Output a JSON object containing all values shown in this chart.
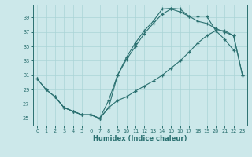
{
  "xlabel": "Humidex (Indice chaleur)",
  "bg_color": "#cce8ea",
  "grid_color": "#aad4d6",
  "line_color": "#2a7070",
  "xlim": [
    -0.5,
    23.5
  ],
  "ylim": [
    24.0,
    40.8
  ],
  "xticks": [
    0,
    1,
    2,
    3,
    4,
    5,
    6,
    7,
    8,
    9,
    10,
    11,
    12,
    13,
    14,
    15,
    16,
    17,
    18,
    19,
    20,
    21,
    22,
    23
  ],
  "yticks": [
    25,
    27,
    29,
    31,
    33,
    35,
    37,
    39
  ],
  "line1_x": [
    0,
    1,
    2,
    3,
    4,
    5,
    6,
    7,
    8,
    9,
    10,
    11,
    12,
    13,
    14,
    15,
    16,
    17,
    18,
    19,
    20,
    21,
    22
  ],
  "line1_y": [
    30.5,
    29.0,
    28.0,
    26.5,
    26.0,
    25.5,
    25.5,
    25.0,
    26.5,
    31.0,
    33.5,
    35.5,
    37.2,
    38.5,
    40.2,
    40.3,
    40.2,
    39.2,
    39.2,
    39.2,
    37.2,
    36.0,
    34.5
  ],
  "line2_x": [
    0,
    1,
    2,
    3,
    4,
    5,
    6,
    7,
    8,
    9,
    10,
    11,
    12,
    13,
    14,
    15,
    16,
    17,
    18,
    19,
    20,
    21,
    22,
    23
  ],
  "line2_y": [
    30.5,
    29.0,
    28.0,
    26.5,
    26.0,
    25.5,
    25.5,
    25.0,
    26.5,
    27.5,
    28.0,
    28.8,
    29.5,
    30.2,
    31.0,
    32.0,
    33.0,
    34.2,
    35.5,
    36.5,
    37.2,
    37.2,
    36.5,
    31.0
  ],
  "line3_x": [
    2,
    3,
    4,
    5,
    6,
    7,
    8,
    9,
    10,
    11,
    12,
    13,
    14,
    15,
    16,
    17,
    18,
    19,
    20,
    21,
    22,
    23
  ],
  "line3_y": [
    28.0,
    26.5,
    26.0,
    25.5,
    25.5,
    25.0,
    27.5,
    31.0,
    33.2,
    35.0,
    36.8,
    38.2,
    39.5,
    40.2,
    39.8,
    39.2,
    38.5,
    38.2,
    37.5,
    37.0,
    36.5,
    31.0
  ]
}
